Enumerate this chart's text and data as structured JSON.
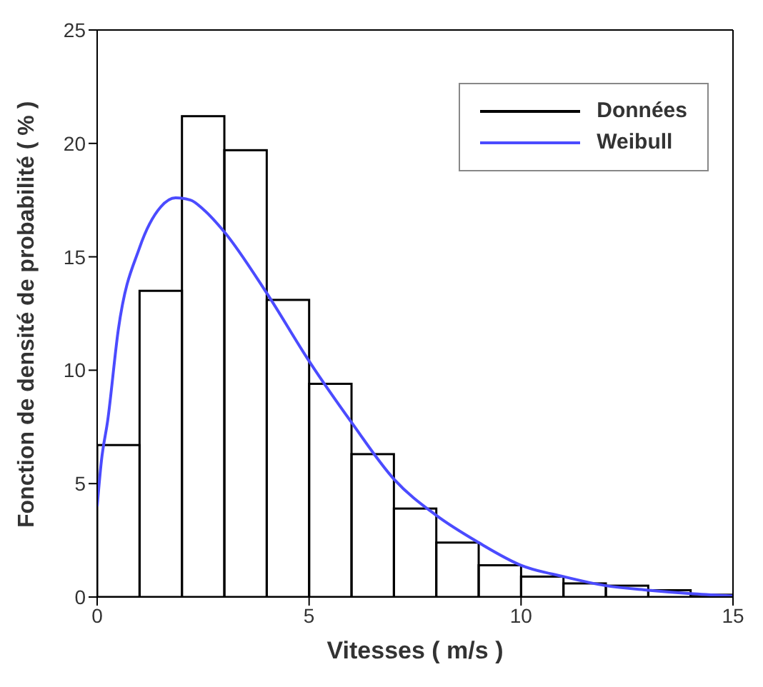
{
  "chart_data": {
    "type": "histogram",
    "xlabel": "Vitesses ( m/s )",
    "ylabel": "Fonction de densité de probabilité ( % )",
    "xlim": [
      0,
      15
    ],
    "xticks": [
      0,
      5,
      10,
      15
    ],
    "ylim": [
      0,
      25
    ],
    "yticks": [
      0,
      5,
      10,
      15,
      20,
      25
    ],
    "grid": false,
    "legend": "top right",
    "series": [
      {
        "name": "Données",
        "color": "#000000",
        "bins": [
          0,
          1,
          2,
          3,
          4,
          5,
          6,
          7,
          8,
          9,
          10,
          11,
          12,
          13,
          14,
          15
        ],
        "values": [
          6.7,
          13.5,
          21.2,
          19.7,
          13.1,
          9.4,
          6.3,
          3.9,
          2.4,
          1.4,
          0.9,
          0.6,
          0.5,
          0.3,
          0.1
        ]
      },
      {
        "name": "Weibull",
        "type": "line",
        "color": "#4b4bff",
        "marker": "none",
        "x": [
          0,
          0.1,
          0.25,
          0.5,
          1,
          1.5,
          1.85,
          2.2,
          2.5,
          3,
          4,
          5,
          6,
          7,
          8,
          9,
          10,
          11,
          12,
          13,
          14,
          15
        ],
        "values": [
          4,
          6,
          7.8,
          11.8,
          15.4,
          17.2,
          17.6,
          17.5,
          17.1,
          16.1,
          13.4,
          10.4,
          7.7,
          5.2,
          3.6,
          2.4,
          1.4,
          0.9,
          0.5,
          0.3,
          0.15,
          0.05
        ]
      }
    ]
  }
}
